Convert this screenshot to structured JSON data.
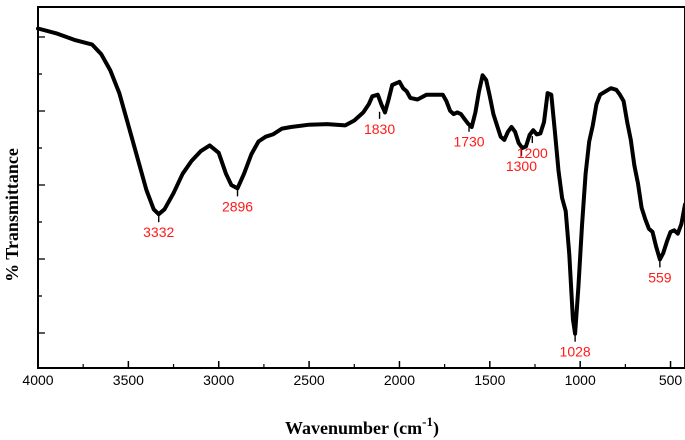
{
  "chart_data": {
    "type": "line",
    "title": "",
    "xlabel": "Wavenumber (cm",
    "xlabel_sup": "-1",
    "xlabel_close": ")",
    "ylabel": "% Transmittance",
    "xlim": [
      4000,
      420
    ],
    "ylim": [
      0,
      100
    ],
    "x_reversed": true,
    "x_ticks": [
      4000,
      3500,
      3000,
      2500,
      2000,
      1500,
      1000,
      500
    ],
    "x_tick_labels": [
      "4000",
      "3500",
      "3000",
      "2500",
      "2000",
      "1500",
      "1000",
      "500"
    ],
    "y_tick_labels_shown": false,
    "grid": false,
    "series": [
      {
        "color": "#000000",
        "x": [
          4000,
          3900,
          3800,
          3700,
          3650,
          3600,
          3550,
          3500,
          3450,
          3400,
          3360,
          3332,
          3300,
          3250,
          3200,
          3150,
          3100,
          3050,
          3000,
          2960,
          2930,
          2896,
          2860,
          2820,
          2780,
          2740,
          2700,
          2650,
          2600,
          2500,
          2400,
          2300,
          2250,
          2200,
          2170,
          2150,
          2120,
          2100,
          2080,
          2060,
          2040,
          2000,
          1980,
          1960,
          1940,
          1900,
          1850,
          1830,
          1800,
          1760,
          1740,
          1720,
          1700,
          1680,
          1660,
          1640,
          1620,
          1600,
          1580,
          1560,
          1540,
          1520,
          1500,
          1480,
          1460,
          1440,
          1420,
          1400,
          1380,
          1360,
          1340,
          1320,
          1300,
          1280,
          1260,
          1240,
          1220,
          1200,
          1180,
          1160,
          1140,
          1120,
          1100,
          1080,
          1060,
          1040,
          1028,
          1010,
          990,
          970,
          950,
          930,
          910,
          890,
          860,
          830,
          800,
          780,
          760,
          740,
          720,
          700,
          680,
          660,
          640,
          620,
          600,
          580,
          559,
          540,
          520,
          500,
          480,
          460,
          440,
          420
        ],
        "y": [
          98,
          96.5,
          94.5,
          93,
          90,
          85,
          78,
          68,
          58,
          48,
          42,
          40.5,
          42,
          47,
          53,
          57,
          60,
          61.8,
          59.5,
          53,
          49.5,
          48.5,
          53,
          59,
          63,
          64.5,
          65.2,
          67,
          67.5,
          68.2,
          68.4,
          68,
          69.5,
          72,
          74.5,
          77,
          77.5,
          74.5,
          72,
          76,
          80.5,
          81.5,
          79.5,
          78.5,
          76.5,
          76,
          77.5,
          77.5,
          77.5,
          77.5,
          75.5,
          72.5,
          71.5,
          72,
          71.5,
          70,
          68.5,
          67.5,
          72,
          78.5,
          83.5,
          82,
          77,
          71.5,
          68,
          64.5,
          63.5,
          66,
          67.5,
          66,
          62.5,
          61,
          61.5,
          65,
          66.5,
          65.2,
          65.5,
          69,
          78,
          77.5,
          66,
          54,
          45.5,
          41.5,
          28,
          8,
          3.5,
          18,
          37,
          53,
          63,
          68,
          74.5,
          77.5,
          78.5,
          79.5,
          79,
          77.5,
          75.5,
          69,
          63.5,
          55.5,
          50,
          42.5,
          39,
          36,
          35,
          30.5,
          26.5,
          28.5,
          32,
          35,
          35.5,
          34.5,
          37.5,
          43.5
        ]
      }
    ],
    "peak_labels": [
      {
        "x": 3332,
        "y": 40.5,
        "text": "3332"
      },
      {
        "x": 2896,
        "y": 48.5,
        "text": "2896"
      },
      {
        "x": 2110,
        "y": 72.5,
        "text": "1830"
      },
      {
        "x": 1615,
        "y": 68.5,
        "text": "1730"
      },
      {
        "x": 1325,
        "y": 61,
        "text": "1300"
      },
      {
        "x": 1265,
        "y": 65,
        "text": "1200"
      },
      {
        "x": 1028,
        "y": 3.5,
        "text": "1028"
      },
      {
        "x": 559,
        "y": 26.5,
        "text": "559"
      }
    ]
  }
}
